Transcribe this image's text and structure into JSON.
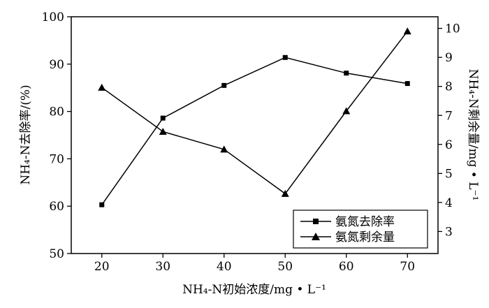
{
  "chart_data": {
    "type": "line",
    "x": [
      20,
      30,
      40,
      50,
      60,
      70
    ],
    "xlim": [
      15,
      75
    ],
    "xticks": [
      20,
      30,
      40,
      50,
      60,
      70
    ],
    "xlabel": "NH₄-N初始浓度/mg • L⁻¹",
    "ylabel_left": "NH₄-N去除率/(%)",
    "ylabel_right": "NH₄-N剩余量/mg • L⁻¹",
    "ylim_left": [
      50,
      100
    ],
    "yticks_left": [
      50,
      60,
      70,
      80,
      90,
      100
    ],
    "ylim_right": [
      2.24,
      10.4
    ],
    "yticks_right": [
      3,
      4,
      5,
      6,
      7,
      8,
      9,
      10
    ],
    "grid": false,
    "legend_position": "bottom-right",
    "series": [
      {
        "name": "氨氮去除率",
        "axis": "left",
        "marker": "square",
        "values": [
          60.3,
          78.6,
          85.5,
          91.4,
          88.1,
          85.9
        ]
      },
      {
        "name": "氨氮剩余量",
        "axis": "right",
        "marker": "triangle",
        "values": [
          7.96,
          6.44,
          5.83,
          4.3,
          7.15,
          9.9
        ]
      }
    ]
  }
}
